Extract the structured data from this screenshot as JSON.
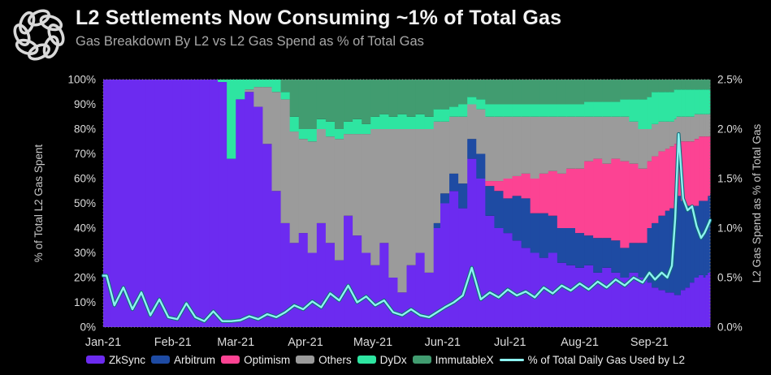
{
  "header": {
    "title": "L2 Settlements Now Consuming ~1% of Total Gas",
    "subtitle": "Gas Breakdown By L2 vs L2 Gas Spend as % of Total Gas",
    "logo_name": "delphi-knot-logo"
  },
  "colors": {
    "background": "#000000",
    "title_text": "#F2F2F2",
    "subtitle_text": "#A8A8A8",
    "axis_text": "#DCDCDC",
    "plot_border": "#8A8A8A"
  },
  "chart_data": {
    "type": "stacked-bar-with-line",
    "title": "L2 Settlements Now Consuming ~1% of Total Gas",
    "subtitle": "Gas Breakdown By L2 vs L2 Gas Spend as % of Total Gas",
    "stack_order": [
      "ZkSync",
      "Arbitrum",
      "Optimism",
      "Others",
      "DyDx",
      "ImmutableX"
    ],
    "series_colors": {
      "ZkSync": "#6C2BF0",
      "Arbitrum": "#1E4BA3",
      "Optimism": "#FC4393",
      "Others": "#9B9B9B",
      "DyDx": "#2EE5A1",
      "ImmutableX": "#419C70"
    },
    "line_series": {
      "name": "% of Total Daily Gas Used by L2",
      "color": "#8DF2F1",
      "axis": "right"
    },
    "left_axis": {
      "label": "% of Total L2 Gas Spent",
      "min": 0,
      "max": 100,
      "step": 10,
      "ticks": [
        "0%",
        "10%",
        "20%",
        "30%",
        "40%",
        "50%",
        "60%",
        "70%",
        "80%",
        "90%",
        "100%"
      ]
    },
    "right_axis": {
      "label": "L2 Gas Spend as % of Total Gas",
      "min": 0,
      "max": 2.5,
      "step": 0.5,
      "ticks": [
        "0.0%",
        "0.5%",
        "1.0%",
        "1.5%",
        "2.0%",
        "2.5%"
      ]
    },
    "x_ticks": [
      "Jan-21",
      "Feb-21",
      "Mar-21",
      "Apr-21",
      "May-21",
      "Jun-21",
      "Jul-21",
      "Aug-21",
      "Sep-21"
    ],
    "x_tick_days": [
      0,
      31,
      59,
      90,
      120,
      151,
      181,
      212,
      243
    ],
    "x_domain_days": 270,
    "grid": false,
    "legend_position": "bottom",
    "legend": [
      {
        "label": "ZkSync",
        "color": "#6C2BF0",
        "type": "swatch"
      },
      {
        "label": "Arbitrum",
        "color": "#1E4BA3",
        "type": "swatch"
      },
      {
        "label": "Optimism",
        "color": "#FC4393",
        "type": "swatch"
      },
      {
        "label": "Others",
        "color": "#9B9B9B",
        "type": "swatch"
      },
      {
        "label": "DyDx",
        "color": "#2EE5A1",
        "type": "swatch"
      },
      {
        "label": "ImmutableX",
        "color": "#419C70",
        "type": "swatch"
      },
      {
        "label": "% of Total Daily Gas Used by L2",
        "color": "#8DF2F1",
        "type": "line"
      }
    ],
    "sample_fields": [
      "date",
      "ZkSync",
      "Arbitrum",
      "Optimism",
      "Others",
      "DyDx",
      "ImmutableX",
      "line_pct"
    ],
    "samples": [
      [
        "2021-01-01",
        100,
        0,
        0,
        0,
        0,
        0,
        0.52
      ],
      [
        "2021-01-04",
        100,
        0,
        0,
        0,
        0,
        0,
        0.22
      ],
      [
        "2021-01-08",
        100,
        0,
        0,
        0,
        0,
        0,
        0.4
      ],
      [
        "2021-01-12",
        100,
        0,
        0,
        0,
        0,
        0,
        0.18
      ],
      [
        "2021-01-16",
        100,
        0,
        0,
        0,
        0,
        0,
        0.35
      ],
      [
        "2021-01-20",
        100,
        0,
        0,
        0,
        0,
        0,
        0.12
      ],
      [
        "2021-01-24",
        100,
        0,
        0,
        0,
        0,
        0,
        0.28
      ],
      [
        "2021-01-28",
        100,
        0,
        0,
        0,
        0,
        0,
        0.1
      ],
      [
        "2021-02-01",
        100,
        0,
        0,
        0,
        0,
        0,
        0.08
      ],
      [
        "2021-02-05",
        100,
        0,
        0,
        0,
        0,
        0,
        0.24
      ],
      [
        "2021-02-09",
        100,
        0,
        0,
        0,
        0,
        0,
        0.1
      ],
      [
        "2021-02-13",
        100,
        0,
        0,
        0,
        0,
        0,
        0.06
      ],
      [
        "2021-02-17",
        100,
        0,
        0,
        0,
        0,
        0,
        0.16
      ],
      [
        "2021-02-21",
        99,
        0,
        0,
        0,
        1,
        0,
        0.06
      ],
      [
        "2021-02-25",
        68,
        0,
        0,
        0,
        32,
        0,
        0.06
      ],
      [
        "2021-03-01",
        92,
        0,
        0,
        0,
        8,
        0,
        0.07
      ],
      [
        "2021-03-05",
        95,
        0,
        0,
        1,
        4,
        0,
        0.11
      ],
      [
        "2021-03-09",
        89,
        0,
        0,
        8,
        3,
        0,
        0.08
      ],
      [
        "2021-03-13",
        74,
        0,
        0,
        23,
        3,
        0,
        0.13
      ],
      [
        "2021-03-17",
        55,
        0,
        0,
        40,
        5,
        0,
        0.1
      ],
      [
        "2021-03-21",
        42,
        0,
        0,
        50,
        3,
        5,
        0.15
      ],
      [
        "2021-03-25",
        34,
        0,
        0,
        45,
        6,
        15,
        0.22
      ],
      [
        "2021-03-29",
        38,
        0,
        0,
        38,
        4,
        20,
        0.18
      ],
      [
        "2021-04-02",
        30,
        0,
        0,
        45,
        5,
        20,
        0.26
      ],
      [
        "2021-04-06",
        42,
        0,
        0,
        38,
        4,
        16,
        0.2
      ],
      [
        "2021-04-10",
        34,
        0,
        0,
        43,
        6,
        17,
        0.34
      ],
      [
        "2021-04-14",
        27,
        0,
        0,
        49,
        4,
        20,
        0.27
      ],
      [
        "2021-04-18",
        45,
        0,
        0,
        33,
        5,
        17,
        0.42
      ],
      [
        "2021-04-22",
        37,
        0,
        0,
        41,
        6,
        16,
        0.25
      ],
      [
        "2021-04-26",
        30,
        0,
        0,
        48,
        4,
        18,
        0.31
      ],
      [
        "2021-04-30",
        25,
        0,
        0,
        55,
        5,
        15,
        0.22
      ],
      [
        "2021-05-04",
        34,
        0,
        0,
        46,
        6,
        14,
        0.27
      ],
      [
        "2021-05-08",
        20,
        0,
        0,
        60,
        5,
        15,
        0.15
      ],
      [
        "2021-05-12",
        14,
        0,
        0,
        66,
        6,
        14,
        0.12
      ],
      [
        "2021-05-16",
        25,
        0,
        0,
        55,
        5,
        15,
        0.18
      ],
      [
        "2021-05-20",
        30,
        0,
        0,
        50,
        6,
        14,
        0.12
      ],
      [
        "2021-05-24",
        22,
        0,
        0,
        58,
        5,
        15,
        0.1
      ],
      [
        "2021-05-28",
        40,
        2,
        0,
        41,
        5,
        12,
        0.15
      ],
      [
        "2021-05-31",
        50,
        4,
        0,
        29,
        5,
        12,
        0.2
      ],
      [
        "2021-06-04",
        55,
        7,
        0,
        23,
        4,
        11,
        0.25
      ],
      [
        "2021-06-08",
        48,
        10,
        0,
        27,
        5,
        10,
        0.32
      ],
      [
        "2021-06-12",
        68,
        8,
        0,
        14,
        3,
        7,
        0.6
      ],
      [
        "2021-06-16",
        60,
        10,
        0,
        18,
        4,
        8,
        0.28
      ],
      [
        "2021-06-20",
        45,
        12,
        2,
        26,
        5,
        10,
        0.35
      ],
      [
        "2021-06-24",
        40,
        15,
        4,
        26,
        5,
        10,
        0.3
      ],
      [
        "2021-06-28",
        38,
        14,
        8,
        25,
        5,
        10,
        0.38
      ],
      [
        "2021-07-02",
        35,
        18,
        8,
        24,
        5,
        10,
        0.32
      ],
      [
        "2021-07-06",
        32,
        20,
        10,
        23,
        5,
        10,
        0.36
      ],
      [
        "2021-07-10",
        30,
        16,
        14,
        25,
        5,
        10,
        0.3
      ],
      [
        "2021-07-14",
        28,
        18,
        16,
        23,
        5,
        10,
        0.4
      ],
      [
        "2021-07-18",
        30,
        15,
        18,
        22,
        5,
        10,
        0.34
      ],
      [
        "2021-07-22",
        26,
        14,
        22,
        23,
        5,
        10,
        0.42
      ],
      [
        "2021-07-26",
        25,
        15,
        24,
        21,
        5,
        10,
        0.37
      ],
      [
        "2021-07-30",
        24,
        14,
        26,
        21,
        5,
        10,
        0.44
      ],
      [
        "2021-08-03",
        25,
        12,
        30,
        18,
        6,
        9,
        0.38
      ],
      [
        "2021-08-07",
        22,
        14,
        32,
        17,
        6,
        9,
        0.46
      ],
      [
        "2021-08-11",
        24,
        12,
        30,
        19,
        6,
        9,
        0.4
      ],
      [
        "2021-08-15",
        22,
        13,
        33,
        17,
        6,
        9,
        0.48
      ],
      [
        "2021-08-19",
        20,
        12,
        35,
        18,
        7,
        8,
        0.42
      ],
      [
        "2021-08-23",
        22,
        12,
        32,
        17,
        9,
        8,
        0.5
      ],
      [
        "2021-08-27",
        20,
        14,
        30,
        16,
        12,
        8,
        0.45
      ],
      [
        "2021-08-31",
        18,
        22,
        27,
        13,
        13,
        7,
        0.55
      ],
      [
        "2021-09-02",
        16,
        26,
        27,
        13,
        13,
        5,
        0.48
      ],
      [
        "2021-09-05",
        15,
        30,
        26,
        12,
        12,
        5,
        0.55
      ],
      [
        "2021-09-08",
        14,
        33,
        25,
        11,
        12,
        5,
        0.5
      ],
      [
        "2021-09-10",
        14,
        34,
        25,
        10,
        12,
        5,
        0.62
      ],
      [
        "2021-09-12",
        13,
        38,
        23,
        10,
        12,
        4,
        1.1
      ],
      [
        "2021-09-13",
        13,
        40,
        22,
        10,
        11,
        4,
        1.95
      ],
      [
        "2021-09-15",
        15,
        36,
        24,
        10,
        11,
        4,
        1.3
      ],
      [
        "2021-09-17",
        16,
        33,
        26,
        10,
        11,
        4,
        1.18
      ],
      [
        "2021-09-19",
        18,
        31,
        26,
        10,
        11,
        4,
        1.22
      ],
      [
        "2021-09-21",
        20,
        29,
        27,
        10,
        10,
        4,
        1.02
      ],
      [
        "2021-09-23",
        21,
        30,
        26,
        9,
        10,
        4,
        0.9
      ],
      [
        "2021-09-25",
        20,
        31,
        26,
        9,
        10,
        4,
        0.95
      ],
      [
        "2021-09-26",
        21,
        30,
        26,
        9,
        10,
        4,
        1.0
      ],
      [
        "2021-09-27",
        22,
        31,
        24,
        9,
        10,
        4,
        1.05
      ],
      [
        "2021-09-28",
        22,
        32,
        23,
        9,
        10,
        4,
        1.08
      ]
    ]
  }
}
